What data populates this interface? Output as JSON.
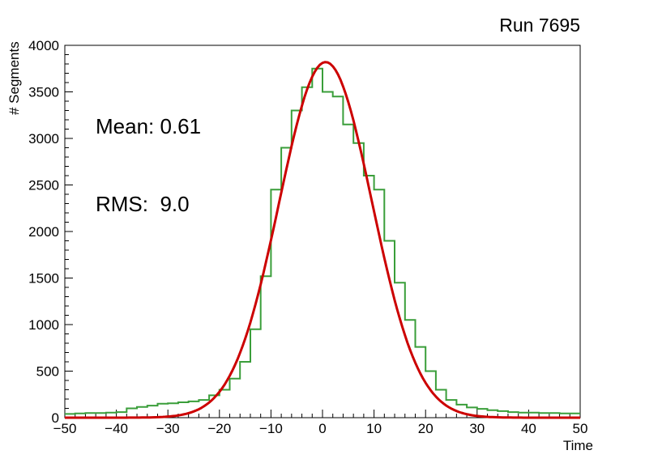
{
  "title": "Run 7695",
  "stats": {
    "mean": "Mean: 0.61",
    "rms": "RMS:  9.0"
  },
  "axes": {
    "x": {
      "label": "Time"
    },
    "y": {
      "label": "# Segments"
    }
  },
  "colors": {
    "histogram": "#3a9e3a",
    "fit": "#cc0000",
    "axis": "#000000",
    "background": "#ffffff"
  },
  "chart_data": {
    "type": "histogram",
    "title": "Run 7695",
    "xlabel": "Time",
    "ylabel": "# Segments",
    "xlim": [
      -50,
      50
    ],
    "ylim": [
      0,
      4000
    ],
    "grid": false,
    "x_ticks": {
      "values": [
        -50,
        -40,
        -30,
        -20,
        -10,
        0,
        10,
        20,
        30,
        40,
        50
      ],
      "labels": [
        "−50",
        "−40",
        "−30",
        "−20",
        "−10",
        "0",
        "10",
        "20",
        "30",
        "40",
        "50"
      ]
    },
    "x_minor_step": 2,
    "y_ticks": {
      "values": [
        0,
        500,
        1000,
        1500,
        2000,
        2500,
        3000,
        3500,
        4000
      ],
      "labels": [
        "0",
        "500",
        "1000",
        "1500",
        "2000",
        "2500",
        "3000",
        "3500",
        "4000"
      ]
    },
    "y_minor_step": 100,
    "bin_start": -50,
    "bin_width": 2,
    "counts": [
      40,
      45,
      50,
      50,
      55,
      60,
      100,
      115,
      130,
      150,
      155,
      165,
      175,
      190,
      240,
      300,
      420,
      600,
      950,
      1520,
      2450,
      2900,
      3300,
      3550,
      3750,
      3500,
      3450,
      3150,
      2950,
      2600,
      2450,
      1900,
      1450,
      1050,
      760,
      500,
      300,
      190,
      140,
      110,
      95,
      80,
      70,
      60,
      55,
      55,
      50,
      50,
      45,
      45
    ],
    "histogram_color": "#3a9e3a",
    "fit": {
      "type": "gaussian",
      "amplitude": 3820,
      "mean": 0.61,
      "sigma": 9.0,
      "color": "#cc0000"
    },
    "stats_box": {
      "mean": 0.61,
      "rms": 9.0
    }
  }
}
